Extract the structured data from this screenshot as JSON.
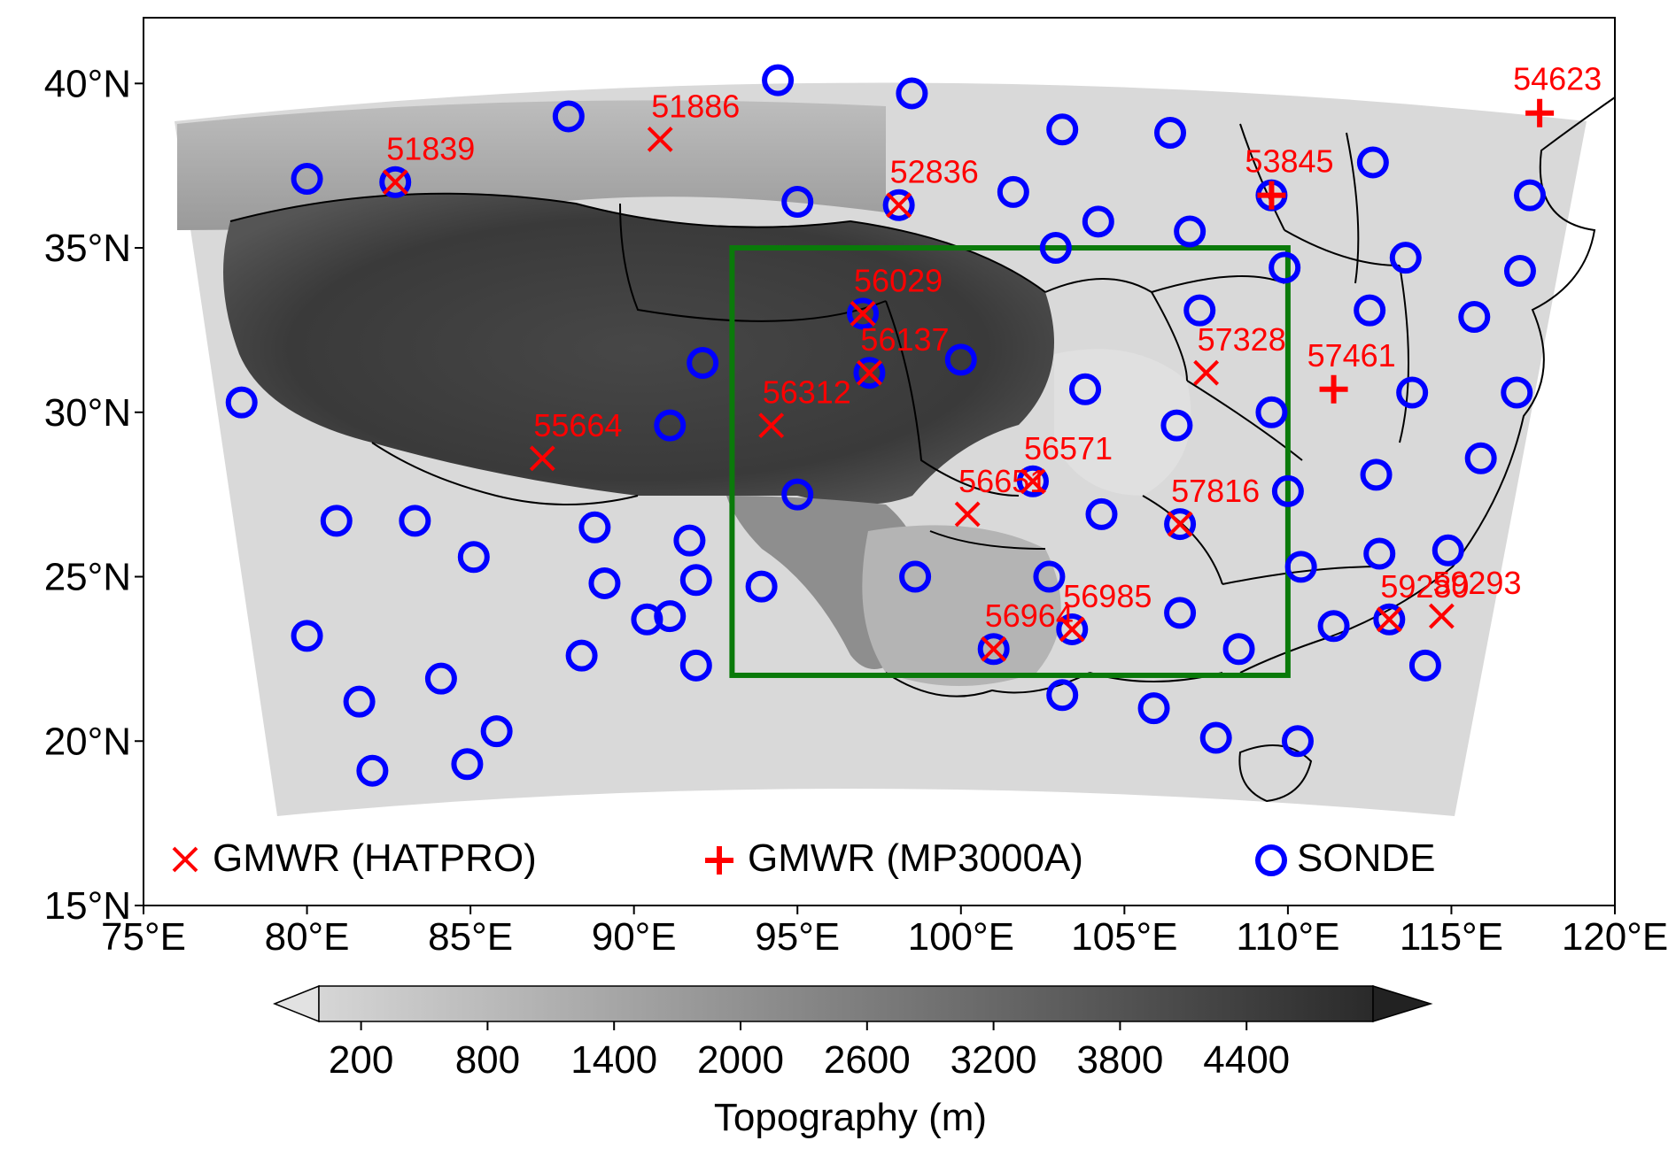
{
  "map": {
    "lon_range": [
      75,
      120
    ],
    "lat_range": [
      15,
      42
    ],
    "lon_ticks": [
      "75°E",
      "80°E",
      "85°E",
      "90°E",
      "95°E",
      "100°E",
      "105°E",
      "110°E",
      "115°E",
      "120°E"
    ],
    "lat_ticks": [
      "15°N",
      "20°N",
      "25°N",
      "30°N",
      "35°N",
      "40°N"
    ],
    "study_box": {
      "lon": [
        93,
        110
      ],
      "lat": [
        22,
        35
      ],
      "color": "#0a7a0a"
    }
  },
  "legend": {
    "hatpro_label": "GMWR (HATPRO)",
    "mp3000a_label": "GMWR (MP3000A)",
    "sonde_label": "SONDE",
    "marker_color": "#ff0000",
    "sonde_color": "#0000ff"
  },
  "stations": {
    "hatpro": [
      {
        "id": "51839",
        "lon": 82.7,
        "lat": 37.0
      },
      {
        "id": "51886",
        "lon": 90.8,
        "lat": 38.3
      },
      {
        "id": "52836",
        "lon": 98.1,
        "lat": 36.3
      },
      {
        "id": "56029",
        "lon": 97.0,
        "lat": 33.0
      },
      {
        "id": "56137",
        "lon": 97.2,
        "lat": 31.2
      },
      {
        "id": "55664",
        "lon": 87.2,
        "lat": 28.6
      },
      {
        "id": "56312",
        "lon": 94.2,
        "lat": 29.6
      },
      {
        "id": "57328",
        "lon": 107.5,
        "lat": 31.2
      },
      {
        "id": "56571",
        "lon": 102.2,
        "lat": 27.9
      },
      {
        "id": "56651",
        "lon": 100.2,
        "lat": 26.9
      },
      {
        "id": "57816",
        "lon": 106.7,
        "lat": 26.6
      },
      {
        "id": "56964",
        "lon": 101.0,
        "lat": 22.8
      },
      {
        "id": "56985",
        "lon": 103.4,
        "lat": 23.4
      },
      {
        "id": "59280",
        "lon": 113.1,
        "lat": 23.7
      },
      {
        "id": "59293",
        "lon": 114.7,
        "lat": 23.8
      }
    ],
    "mp3000a": [
      {
        "id": "53845",
        "lon": 109.5,
        "lat": 36.6
      },
      {
        "id": "57461",
        "lon": 111.4,
        "lat": 30.7
      },
      {
        "id": "54623",
        "lon": 117.7,
        "lat": 39.1
      }
    ],
    "sonde": [
      [
        78.0,
        30.3
      ],
      [
        80.0,
        37.1
      ],
      [
        82.7,
        37.0
      ],
      [
        88.0,
        39.0
      ],
      [
        94.4,
        40.1
      ],
      [
        98.5,
        39.7
      ],
      [
        95.0,
        36.4
      ],
      [
        98.1,
        36.3
      ],
      [
        101.6,
        36.7
      ],
      [
        103.1,
        38.6
      ],
      [
        104.2,
        35.8
      ],
      [
        106.4,
        38.5
      ],
      [
        102.9,
        35.0
      ],
      [
        107.0,
        35.5
      ],
      [
        109.5,
        36.6
      ],
      [
        112.6,
        37.6
      ],
      [
        117.4,
        36.6
      ],
      [
        117.1,
        34.3
      ],
      [
        113.6,
        34.7
      ],
      [
        112.5,
        33.1
      ],
      [
        109.9,
        34.4
      ],
      [
        115.7,
        32.9
      ],
      [
        107.3,
        33.1
      ],
      [
        97.0,
        33.0
      ],
      [
        97.2,
        31.2
      ],
      [
        92.1,
        31.5
      ],
      [
        91.1,
        29.6
      ],
      [
        100.0,
        31.6
      ],
      [
        103.8,
        30.7
      ],
      [
        106.6,
        29.6
      ],
      [
        109.5,
        30.0
      ],
      [
        113.8,
        30.6
      ],
      [
        117.0,
        30.6
      ],
      [
        95.0,
        27.5
      ],
      [
        102.2,
        27.9
      ],
      [
        104.3,
        26.9
      ],
      [
        106.7,
        26.6
      ],
      [
        110.0,
        27.6
      ],
      [
        112.7,
        28.1
      ],
      [
        115.9,
        28.6
      ],
      [
        98.6,
        25.0
      ],
      [
        102.7,
        25.0
      ],
      [
        106.7,
        23.9
      ],
      [
        110.4,
        25.3
      ],
      [
        112.8,
        25.7
      ],
      [
        114.9,
        25.8
      ],
      [
        111.4,
        23.5
      ],
      [
        113.1,
        23.7
      ],
      [
        114.2,
        22.3
      ],
      [
        101.0,
        22.8
      ],
      [
        103.4,
        23.4
      ],
      [
        108.5,
        22.8
      ],
      [
        103.1,
        21.4
      ],
      [
        105.9,
        21.0
      ],
      [
        107.8,
        20.1
      ],
      [
        110.3,
        20.0
      ],
      [
        93.9,
        24.7
      ],
      [
        91.7,
        26.1
      ],
      [
        91.9,
        24.9
      ],
      [
        91.9,
        22.3
      ],
      [
        91.1,
        23.8
      ],
      [
        90.4,
        23.7
      ],
      [
        89.1,
        24.8
      ],
      [
        88.8,
        26.5
      ],
      [
        88.4,
        22.6
      ],
      [
        85.1,
        25.6
      ],
      [
        83.3,
        26.7
      ],
      [
        80.9,
        26.7
      ],
      [
        80.0,
        23.2
      ],
      [
        81.6,
        21.2
      ],
      [
        82.0,
        19.1
      ],
      [
        84.1,
        21.9
      ],
      [
        84.9,
        19.3
      ],
      [
        85.8,
        20.3
      ]
    ]
  },
  "colorbar": {
    "label": "Topography (m)",
    "ticks": [
      "200",
      "800",
      "1400",
      "2000",
      "2600",
      "3200",
      "3800",
      "4400"
    ],
    "tick_values": [
      200,
      800,
      1400,
      2000,
      2600,
      3200,
      3800,
      4400
    ],
    "range": [
      0,
      5000
    ]
  }
}
